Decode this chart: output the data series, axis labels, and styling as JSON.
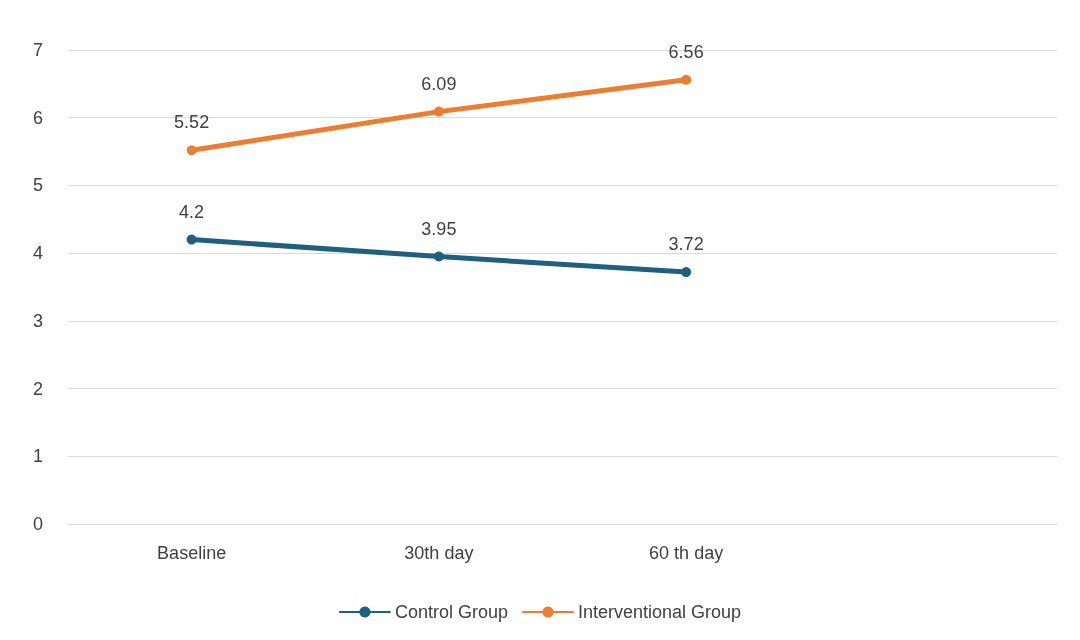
{
  "chart_data": {
    "type": "line",
    "categories": [
      "Baseline",
      "30th day",
      "60 th day",
      null
    ],
    "series": [
      {
        "name": "Control Group",
        "color": "#1f5f7f",
        "values": [
          4.2,
          3.95,
          3.72,
          null
        ]
      },
      {
        "name": "Interventional Group",
        "color": "#ed7d31",
        "values": [
          5.52,
          6.09,
          6.56,
          null
        ]
      }
    ],
    "ylim": [
      0,
      7
    ],
    "yticks": [
      0,
      1,
      2,
      3,
      4,
      5,
      6,
      7
    ],
    "grid": "y",
    "legend": "bottom",
    "marker": "circle",
    "line_style": "solid",
    "data_labels": true
  }
}
